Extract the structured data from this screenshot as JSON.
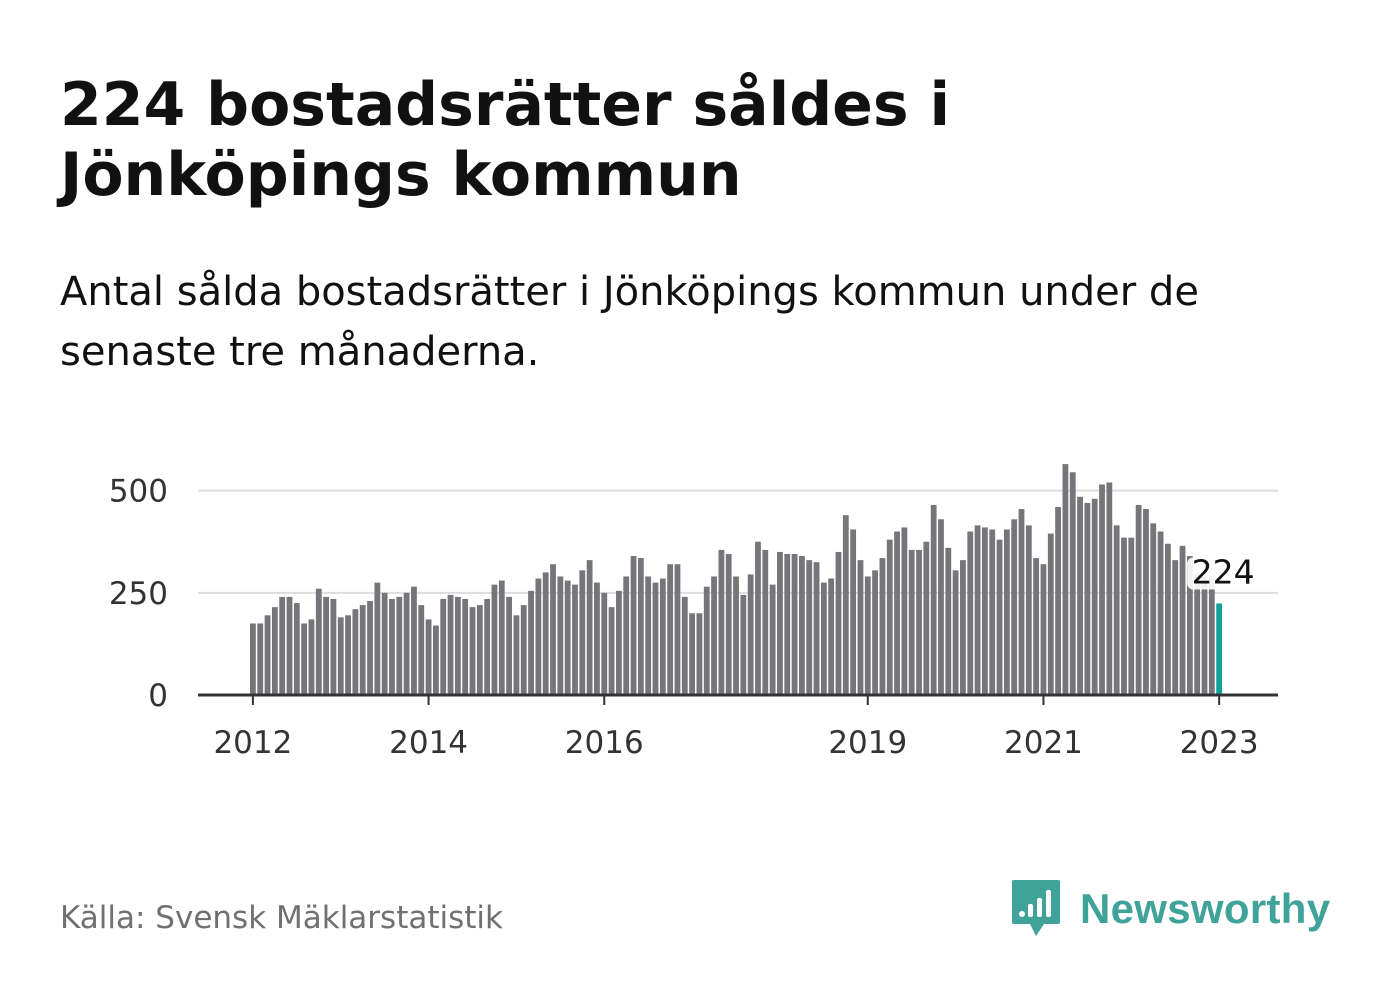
{
  "title": "224 bostadsrätter såldes i Jönköpings kommun",
  "subtitle": "Antal sålda bostadsrätter i Jönköpings kommun under de senaste tre månaderna.",
  "source": "Källa: Svensk Mäklarstatistik",
  "brand": {
    "name": "Newsworthy",
    "icon": "newsworthy-logo-icon",
    "color": "#3fa39a"
  },
  "colors": {
    "bar": "#75757a",
    "highlight": "#12a19a",
    "grid": "#dddddd",
    "axis": "#333333"
  },
  "chart_data": {
    "type": "bar",
    "title": "",
    "xlabel": "",
    "ylabel": "",
    "ylim": [
      0,
      575
    ],
    "grid": true,
    "y_ticks": [
      0,
      250,
      500
    ],
    "x_ticks": [
      {
        "label": "2012",
        "index": 0
      },
      {
        "label": "2014",
        "index": 24
      },
      {
        "label": "2016",
        "index": 48
      },
      {
        "label": "2019",
        "index": 84
      },
      {
        "label": "2021",
        "index": 108
      },
      {
        "label": "2023",
        "index": 132
      }
    ],
    "annotation": {
      "label": "224",
      "index": 132
    },
    "highlight_index": 132,
    "values": [
      175,
      175,
      195,
      215,
      240,
      240,
      225,
      175,
      185,
      260,
      240,
      235,
      190,
      195,
      210,
      220,
      230,
      275,
      250,
      235,
      240,
      250,
      265,
      220,
      185,
      170,
      235,
      245,
      240,
      235,
      215,
      220,
      235,
      270,
      280,
      240,
      195,
      220,
      255,
      285,
      300,
      320,
      290,
      280,
      270,
      305,
      330,
      275,
      250,
      215,
      255,
      290,
      340,
      335,
      290,
      275,
      285,
      320,
      320,
      240,
      200,
      200,
      265,
      290,
      355,
      345,
      290,
      245,
      295,
      375,
      355,
      270,
      350,
      345,
      345,
      340,
      330,
      325,
      275,
      285,
      350,
      440,
      405,
      330,
      290,
      305,
      335,
      380,
      400,
      410,
      355,
      355,
      375,
      465,
      430,
      360,
      305,
      330,
      400,
      415,
      410,
      405,
      380,
      405,
      430,
      455,
      415,
      335,
      320,
      395,
      460,
      565,
      545,
      485,
      470,
      480,
      515,
      520,
      415,
      385,
      385,
      465,
      455,
      420,
      400,
      370,
      330,
      365,
      340,
      295,
      290,
      290,
      224
    ]
  }
}
